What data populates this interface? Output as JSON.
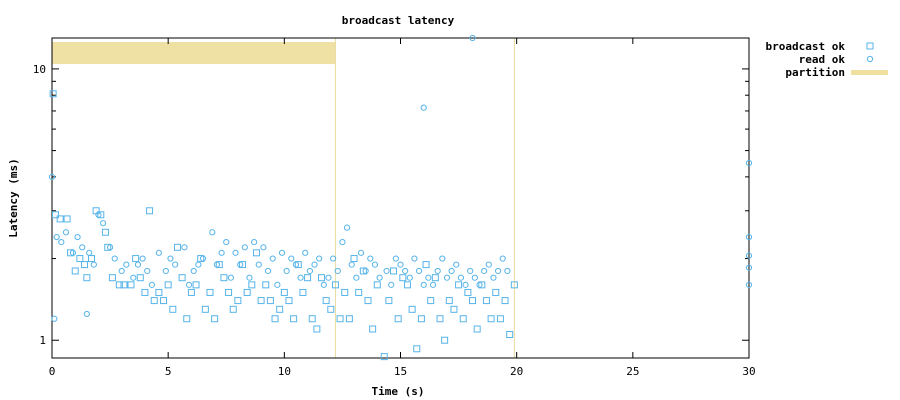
{
  "chart_data": {
    "type": "scatter",
    "title": "broadcast latency",
    "xlabel": "Time (s)",
    "ylabel": "Latency (ms)",
    "xlim": [
      0,
      30
    ],
    "ylim": [
      0.86,
      13.0
    ],
    "yscale": "log",
    "x_ticks": [
      0,
      5,
      10,
      15,
      20,
      25,
      30
    ],
    "x_tick_labels": [
      "0",
      "5",
      "10",
      "15",
      "20",
      "25",
      "30"
    ],
    "y_ticks": [
      1,
      10
    ],
    "y_tick_labels": [
      "1",
      "10"
    ],
    "legend_position": "top-right (outside plot)",
    "partitions": [
      {
        "start": 0.0,
        "end": 12.2
      }
    ],
    "partition_end_markers": [
      12.2,
      19.9
    ],
    "series": [
      {
        "name": "broadcast ok",
        "marker": "square",
        "color": "#56b4e9",
        "points": [
          [
            0.05,
            8.1
          ],
          [
            0.15,
            2.9
          ],
          [
            0.35,
            2.8
          ],
          [
            0.65,
            2.8
          ],
          [
            0.8,
            2.1
          ],
          [
            1.0,
            1.8
          ],
          [
            1.2,
            2.0
          ],
          [
            1.4,
            1.9
          ],
          [
            1.5,
            1.7
          ],
          [
            1.7,
            2.0
          ],
          [
            1.9,
            3.0
          ],
          [
            2.1,
            2.9
          ],
          [
            2.3,
            2.5
          ],
          [
            2.4,
            2.2
          ],
          [
            2.6,
            1.7
          ],
          [
            2.9,
            1.6
          ],
          [
            3.1,
            1.6
          ],
          [
            3.4,
            1.6
          ],
          [
            3.6,
            2.0
          ],
          [
            3.8,
            1.7
          ],
          [
            4.0,
            1.5
          ],
          [
            4.2,
            3.0
          ],
          [
            4.4,
            1.4
          ],
          [
            4.6,
            1.5
          ],
          [
            4.8,
            1.4
          ],
          [
            5.0,
            1.6
          ],
          [
            5.2,
            1.3
          ],
          [
            5.4,
            2.2
          ],
          [
            5.6,
            1.7
          ],
          [
            5.8,
            1.2
          ],
          [
            6.0,
            1.5
          ],
          [
            6.2,
            1.6
          ],
          [
            6.4,
            2.0
          ],
          [
            6.6,
            1.3
          ],
          [
            6.8,
            1.5
          ],
          [
            7.0,
            1.2
          ],
          [
            7.2,
            1.9
          ],
          [
            7.4,
            1.7
          ],
          [
            7.6,
            1.5
          ],
          [
            7.8,
            1.3
          ],
          [
            8.0,
            1.4
          ],
          [
            8.2,
            1.9
          ],
          [
            8.4,
            1.5
          ],
          [
            8.6,
            1.6
          ],
          [
            8.8,
            2.1
          ],
          [
            9.0,
            1.4
          ],
          [
            9.2,
            1.6
          ],
          [
            9.4,
            1.4
          ],
          [
            9.6,
            1.2
          ],
          [
            9.8,
            1.3
          ],
          [
            10.0,
            1.5
          ],
          [
            10.2,
            1.4
          ],
          [
            10.4,
            1.2
          ],
          [
            10.6,
            1.9
          ],
          [
            10.8,
            1.5
          ],
          [
            11.0,
            1.7
          ],
          [
            11.2,
            1.2
          ],
          [
            11.4,
            1.1
          ],
          [
            11.6,
            1.7
          ],
          [
            11.8,
            1.4
          ],
          [
            12.0,
            1.3
          ],
          [
            12.2,
            1.6
          ],
          [
            12.4,
            1.2
          ],
          [
            12.6,
            1.5
          ],
          [
            12.8,
            1.2
          ],
          [
            13.0,
            2.0
          ],
          [
            13.2,
            1.5
          ],
          [
            13.4,
            1.8
          ],
          [
            13.6,
            1.4
          ],
          [
            13.8,
            1.1
          ],
          [
            14.0,
            1.6
          ],
          [
            14.3,
            0.87
          ],
          [
            14.5,
            1.4
          ],
          [
            14.7,
            1.8
          ],
          [
            14.9,
            1.2
          ],
          [
            15.1,
            1.7
          ],
          [
            15.3,
            1.6
          ],
          [
            15.5,
            1.3
          ],
          [
            15.7,
            0.93
          ],
          [
            15.9,
            1.2
          ],
          [
            16.1,
            1.9
          ],
          [
            16.3,
            1.4
          ],
          [
            16.5,
            1.7
          ],
          [
            16.7,
            1.2
          ],
          [
            16.9,
            1.0
          ],
          [
            17.1,
            1.4
          ],
          [
            17.3,
            1.3
          ],
          [
            17.5,
            1.6
          ],
          [
            17.7,
            1.2
          ],
          [
            17.9,
            1.5
          ],
          [
            18.1,
            1.4
          ],
          [
            18.3,
            1.1
          ],
          [
            18.5,
            1.6
          ],
          [
            18.7,
            1.4
          ],
          [
            18.9,
            1.2
          ],
          [
            19.1,
            1.5
          ],
          [
            19.3,
            1.2
          ],
          [
            19.5,
            1.4
          ],
          [
            19.7,
            1.05
          ],
          [
            19.9,
            1.6
          ]
        ]
      },
      {
        "name": "read ok",
        "marker": "circle",
        "color": "#56b4e9",
        "points": [
          [
            0.0,
            4.0
          ],
          [
            0.1,
            1.2
          ],
          [
            0.2,
            2.4
          ],
          [
            0.4,
            2.3
          ],
          [
            0.6,
            2.5
          ],
          [
            0.9,
            2.1
          ],
          [
            1.1,
            2.4
          ],
          [
            1.3,
            2.2
          ],
          [
            1.6,
            2.1
          ],
          [
            1.8,
            1.9
          ],
          [
            2.0,
            2.9
          ],
          [
            2.2,
            2.7
          ],
          [
            2.5,
            2.2
          ],
          [
            2.7,
            2.0
          ],
          [
            3.0,
            1.8
          ],
          [
            3.2,
            1.9
          ],
          [
            3.5,
            1.7
          ],
          [
            3.7,
            1.9
          ],
          [
            3.9,
            2.0
          ],
          [
            4.1,
            1.8
          ],
          [
            4.3,
            1.6
          ],
          [
            4.6,
            2.1
          ],
          [
            4.9,
            1.8
          ],
          [
            5.1,
            2.0
          ],
          [
            5.3,
            1.9
          ],
          [
            5.7,
            2.2
          ],
          [
            5.9,
            1.6
          ],
          [
            6.1,
            1.8
          ],
          [
            6.3,
            1.9
          ],
          [
            6.5,
            2.0
          ],
          [
            6.9,
            2.5
          ],
          [
            7.1,
            1.9
          ],
          [
            7.3,
            2.1
          ],
          [
            7.5,
            2.3
          ],
          [
            7.7,
            1.7
          ],
          [
            7.9,
            2.1
          ],
          [
            8.1,
            1.9
          ],
          [
            8.3,
            2.2
          ],
          [
            8.5,
            1.7
          ],
          [
            8.7,
            2.3
          ],
          [
            8.9,
            1.9
          ],
          [
            9.1,
            2.2
          ],
          [
            9.3,
            1.8
          ],
          [
            9.5,
            2.0
          ],
          [
            9.7,
            1.6
          ],
          [
            9.9,
            2.1
          ],
          [
            10.1,
            1.8
          ],
          [
            10.3,
            2.0
          ],
          [
            10.5,
            1.9
          ],
          [
            10.7,
            1.7
          ],
          [
            10.9,
            2.1
          ],
          [
            11.1,
            1.8
          ],
          [
            11.3,
            1.9
          ],
          [
            11.5,
            2.0
          ],
          [
            11.7,
            1.6
          ],
          [
            11.9,
            1.7
          ],
          [
            12.1,
            2.0
          ],
          [
            12.3,
            1.8
          ],
          [
            12.5,
            2.3
          ],
          [
            12.7,
            2.6
          ],
          [
            12.9,
            1.9
          ],
          [
            13.1,
            1.7
          ],
          [
            13.3,
            2.1
          ],
          [
            13.5,
            1.8
          ],
          [
            13.7,
            2.0
          ],
          [
            13.9,
            1.9
          ],
          [
            14.1,
            1.7
          ],
          [
            14.4,
            1.8
          ],
          [
            14.6,
            1.6
          ],
          [
            14.8,
            2.0
          ],
          [
            15.0,
            1.9
          ],
          [
            15.2,
            1.8
          ],
          [
            15.4,
            1.7
          ],
          [
            15.6,
            2.0
          ],
          [
            15.8,
            1.8
          ],
          [
            16.0,
            1.6
          ],
          [
            16.2,
            1.7
          ],
          [
            16.4,
            1.6
          ],
          [
            16.6,
            1.8
          ],
          [
            16.8,
            2.0
          ],
          [
            17.0,
            1.7
          ],
          [
            17.2,
            1.8
          ],
          [
            17.4,
            1.9
          ],
          [
            17.6,
            1.7
          ],
          [
            17.8,
            1.6
          ],
          [
            18.0,
            1.8
          ],
          [
            18.2,
            1.7
          ],
          [
            18.4,
            1.6
          ],
          [
            18.6,
            1.8
          ],
          [
            18.8,
            1.9
          ],
          [
            19.0,
            1.7
          ],
          [
            19.2,
            1.8
          ],
          [
            19.4,
            2.0
          ],
          [
            19.6,
            1.8
          ],
          [
            16.0,
            7.2
          ],
          [
            18.1,
            13.0
          ],
          [
            30.0,
            4.5
          ],
          [
            30.0,
            2.4
          ],
          [
            30.0,
            2.05
          ],
          [
            30.0,
            1.85
          ],
          [
            30.0,
            1.6
          ],
          [
            1.5,
            1.25
          ]
        ]
      }
    ],
    "legend": [
      {
        "label": "broadcast ok",
        "marker": "square",
        "color": "#56b4e9"
      },
      {
        "label": "read ok",
        "marker": "circle",
        "color": "#56b4e9"
      },
      {
        "label": "partition",
        "marker": "bar",
        "color": "#f0e0a0"
      }
    ],
    "colors": {
      "series": "#56b4e9",
      "partition": "#efe0a4",
      "partition_line": "#e8dba0",
      "axis": "#000000"
    }
  }
}
